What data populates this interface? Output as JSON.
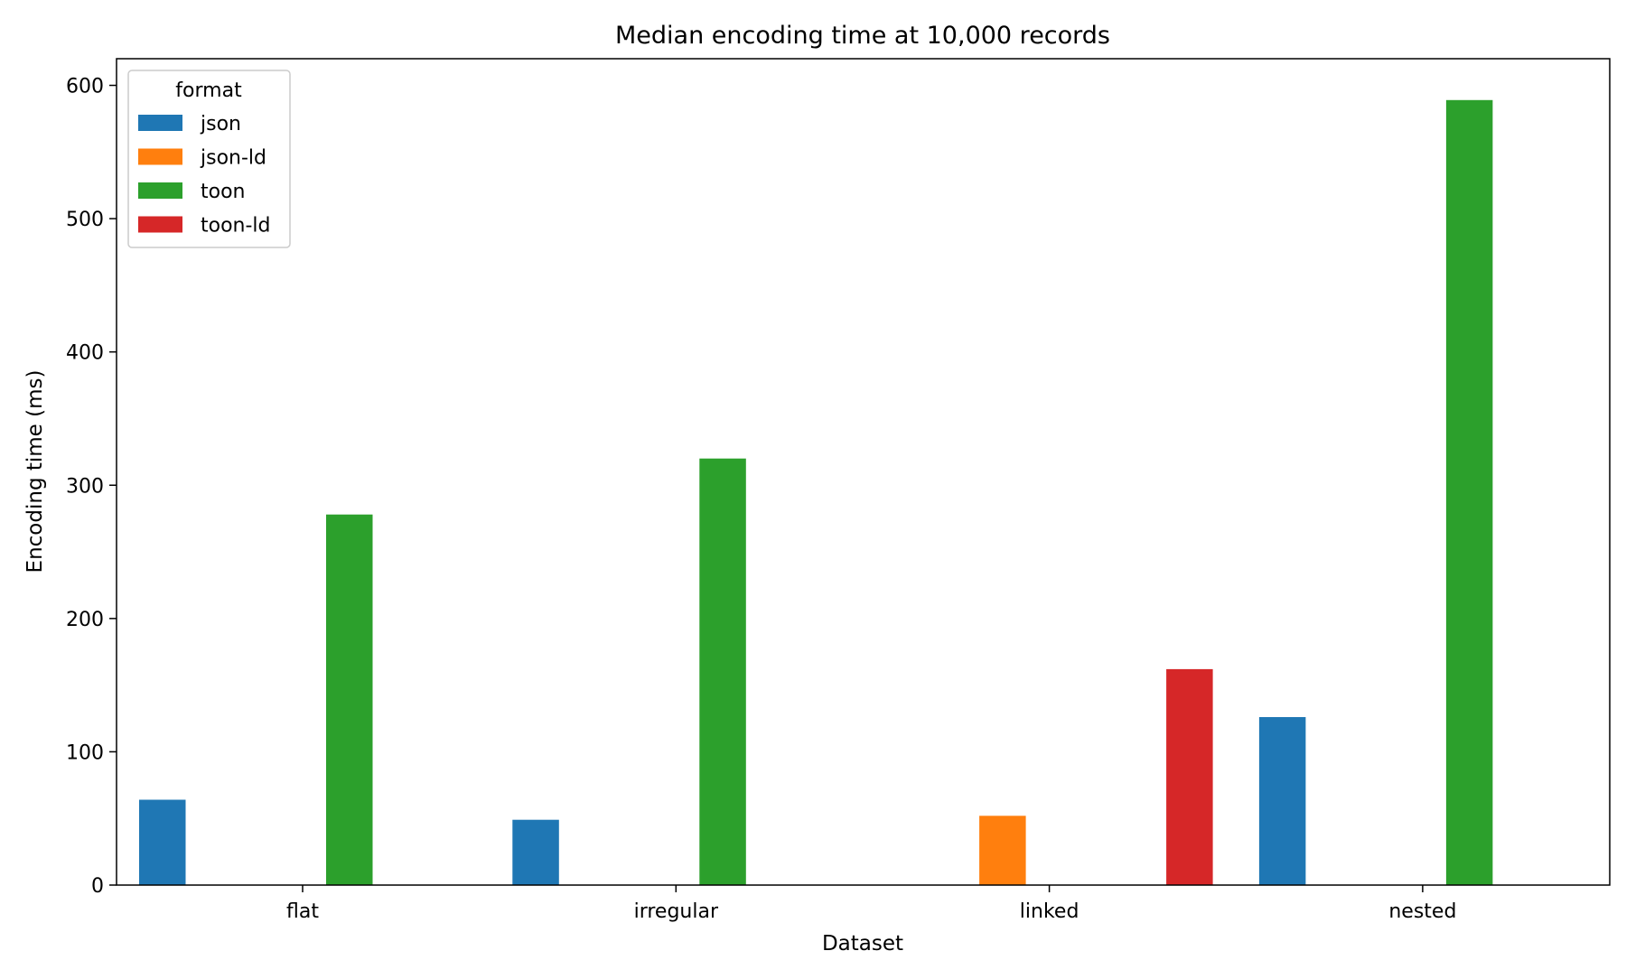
{
  "chart_data": {
    "type": "bar",
    "title": "Median encoding time at 10,000 records",
    "xlabel": "Dataset",
    "ylabel": "Encoding time (ms)",
    "categories": [
      "flat",
      "irregular",
      "linked",
      "nested"
    ],
    "ylim": [
      0,
      620
    ],
    "yticks": [
      0,
      100,
      200,
      300,
      400,
      500,
      600
    ],
    "grid": false,
    "legend": {
      "title": "format",
      "position": "top-left"
    },
    "series": [
      {
        "name": "json",
        "color": "#1f77b4",
        "values": [
          64,
          49,
          null,
          126
        ]
      },
      {
        "name": "json-ld",
        "color": "#ff7f0e",
        "values": [
          null,
          null,
          52,
          null
        ]
      },
      {
        "name": "toon",
        "color": "#2ca02c",
        "values": [
          278,
          320,
          null,
          589
        ]
      },
      {
        "name": "toon-ld",
        "color": "#d62728",
        "values": [
          null,
          null,
          162,
          null
        ]
      }
    ]
  }
}
